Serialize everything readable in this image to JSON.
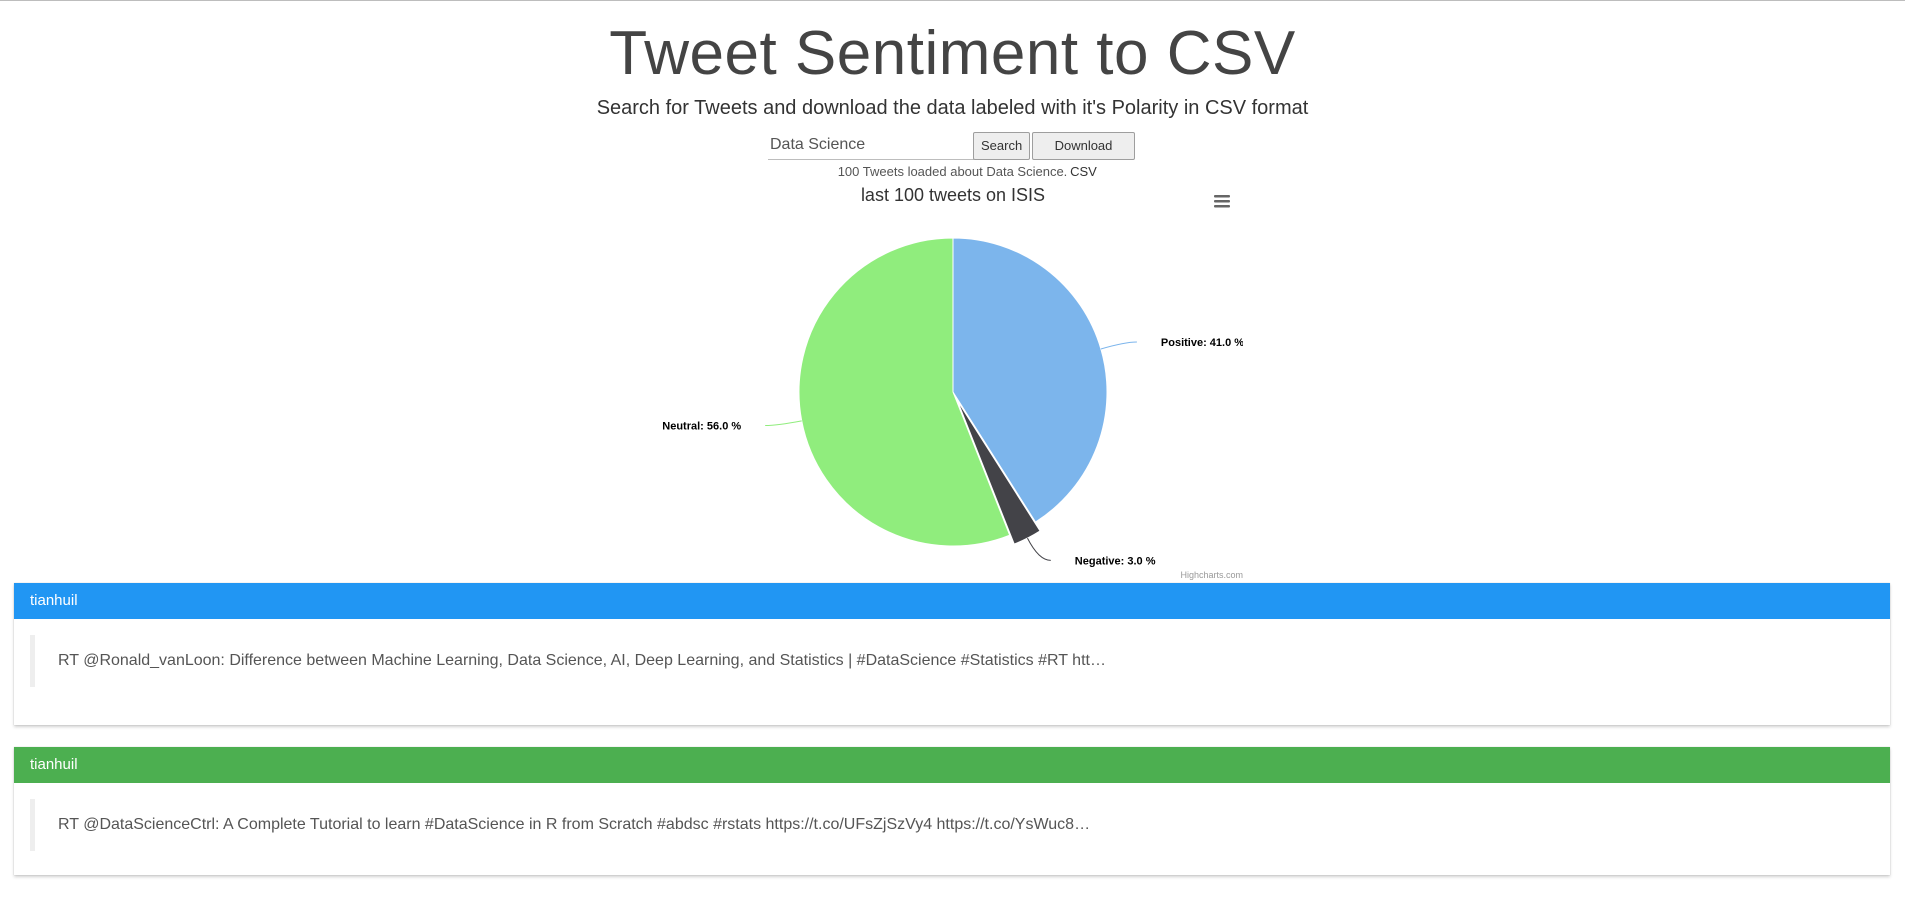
{
  "header": {
    "title": "Tweet Sentiment to CSV",
    "subtitle": "Search for Tweets and download the data labeled with it's Polarity in CSV format"
  },
  "search": {
    "value": "Data Science",
    "search_label": "Search",
    "download_label": "Download CSV",
    "status": "100 Tweets loaded about Data Science."
  },
  "chart": {
    "credit": "Highcharts.com",
    "menu_icon": "hamburger-menu-icon"
  },
  "chart_data": {
    "type": "pie",
    "title": "last 100 tweets on ISIS",
    "series": [
      {
        "name": "Positive",
        "value": 41.0,
        "label": "Positive: 41.0 %",
        "color": "#7cb5ec"
      },
      {
        "name": "Negative",
        "value": 3.0,
        "label": "Negative: 3.0 %",
        "color": "#434348",
        "sliced": true
      },
      {
        "name": "Neutral",
        "value": 56.0,
        "label": "Neutral: 56.0 %",
        "color": "#90ed7d"
      }
    ]
  },
  "tweets": [
    {
      "user": "tianhuil",
      "text": "RT @Ronald_vanLoon: Difference between Machine Learning, Data Science, AI, Deep Learning, and Statistics | #DataScience #Statistics #RT htt…",
      "color": "#2196f3"
    },
    {
      "user": "tianhuil",
      "text": "RT @DataScienceCtrl: A Complete Tutorial to learn #DataScience in R from Scratch #abdsc #rstats https://t.co/UFsZjSzVy4 https://t.co/YsWuc8…",
      "color": "#4caf50"
    }
  ]
}
